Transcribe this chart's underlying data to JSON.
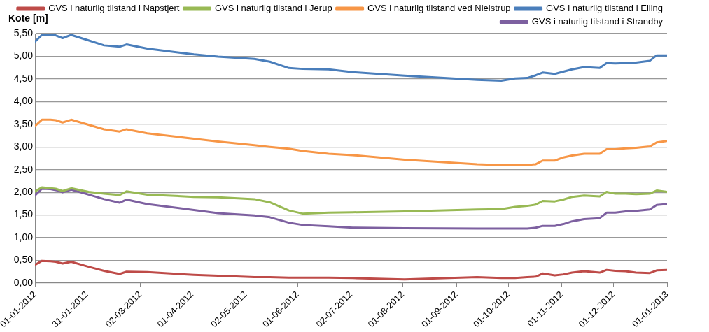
{
  "chart_data": {
    "type": "line",
    "ylabel": "Kote [m]",
    "x": [
      "2012-01-01",
      "2012-01-05",
      "2012-01-10",
      "2012-01-13",
      "2012-01-17",
      "2012-01-22",
      "2012-02-01",
      "2012-02-10",
      "2012-02-19",
      "2012-02-23",
      "2012-03-06",
      "2012-04-02",
      "2012-04-16",
      "2012-05-07",
      "2012-05-16",
      "2012-05-27",
      "2012-06-04",
      "2012-06-19",
      "2012-07-03",
      "2012-08-02",
      "2012-09-13",
      "2012-09-27",
      "2012-10-05",
      "2012-10-12",
      "2012-10-17",
      "2012-10-21",
      "2012-10-28",
      "2012-11-02",
      "2012-11-07",
      "2012-11-14",
      "2012-11-23",
      "2012-11-27",
      "2012-12-02",
      "2012-12-08",
      "2012-12-14",
      "2012-12-22",
      "2012-12-26",
      "2013-01-01"
    ],
    "series": [
      {
        "name": "GVS i naturlig tilstand i Napstjert",
        "color": "#be4b48",
        "values": [
          0.4,
          0.49,
          0.48,
          0.47,
          0.43,
          0.47,
          0.36,
          0.27,
          0.2,
          0.25,
          0.24,
          0.18,
          0.16,
          0.13,
          0.13,
          0.12,
          0.12,
          0.12,
          0.11,
          0.08,
          0.13,
          0.11,
          0.11,
          0.13,
          0.14,
          0.21,
          0.17,
          0.19,
          0.23,
          0.26,
          0.23,
          0.29,
          0.27,
          0.26,
          0.23,
          0.22,
          0.28,
          0.29
        ]
      },
      {
        "name": "GVS i naturlig tilstand i Jerup",
        "color": "#98b954",
        "values": [
          2.02,
          2.11,
          2.09,
          2.08,
          2.03,
          2.09,
          2.01,
          1.97,
          1.94,
          2.02,
          1.95,
          1.9,
          1.89,
          1.85,
          1.78,
          1.6,
          1.53,
          1.55,
          1.56,
          1.58,
          1.62,
          1.63,
          1.68,
          1.7,
          1.73,
          1.81,
          1.8,
          1.84,
          1.9,
          1.93,
          1.91,
          2.01,
          1.97,
          1.97,
          1.96,
          1.97,
          2.04,
          2.01
        ]
      },
      {
        "name": "GVS i naturlig tilstand ved Nielstrup",
        "color": "#f79646",
        "values": [
          3.46,
          3.6,
          3.6,
          3.59,
          3.54,
          3.6,
          3.49,
          3.39,
          3.34,
          3.39,
          3.3,
          3.18,
          3.12,
          3.04,
          3.0,
          2.96,
          2.91,
          2.85,
          2.82,
          2.72,
          2.62,
          2.6,
          2.6,
          2.6,
          2.62,
          2.7,
          2.7,
          2.77,
          2.81,
          2.85,
          2.85,
          2.95,
          2.95,
          2.97,
          2.98,
          3.01,
          3.1,
          3.13
        ]
      },
      {
        "name": "GVS i naturlig tilstand i Elling",
        "color": "#4a7ebb",
        "values": [
          5.32,
          5.47,
          5.46,
          5.46,
          5.4,
          5.47,
          5.35,
          5.24,
          5.21,
          5.26,
          5.17,
          5.04,
          4.99,
          4.94,
          4.88,
          4.74,
          4.72,
          4.71,
          4.65,
          4.57,
          4.48,
          4.46,
          4.51,
          4.52,
          4.58,
          4.64,
          4.61,
          4.66,
          4.71,
          4.76,
          4.74,
          4.85,
          4.84,
          4.85,
          4.86,
          4.9,
          5.02,
          5.02
        ]
      },
      {
        "name": "GVS i naturlig tilstand i Strandby",
        "color": "#7d60a0",
        "values": [
          1.93,
          2.08,
          2.07,
          2.05,
          2.0,
          2.06,
          1.95,
          1.85,
          1.77,
          1.84,
          1.74,
          1.61,
          1.54,
          1.49,
          1.45,
          1.33,
          1.28,
          1.25,
          1.22,
          1.21,
          1.2,
          1.2,
          1.2,
          1.2,
          1.22,
          1.26,
          1.26,
          1.3,
          1.36,
          1.41,
          1.43,
          1.55,
          1.55,
          1.58,
          1.59,
          1.62,
          1.72,
          1.74
        ]
      }
    ],
    "xlim": [
      "2012-01-01",
      "2013-01-01"
    ],
    "xticks": [
      {
        "value": "2012-01-01",
        "label": "01-01-2012"
      },
      {
        "value": "2012-01-31",
        "label": "31-01-2012"
      },
      {
        "value": "2012-03-02",
        "label": "02-03-2012"
      },
      {
        "value": "2012-04-01",
        "label": "01-04-2012"
      },
      {
        "value": "2012-05-02",
        "label": "02-05-2012"
      },
      {
        "value": "2012-06-01",
        "label": "01-06-2012"
      },
      {
        "value": "2012-07-02",
        "label": "02-07-2012"
      },
      {
        "value": "2012-08-01",
        "label": "01-08-2012"
      },
      {
        "value": "2012-09-01",
        "label": "01-09-2012"
      },
      {
        "value": "2012-10-01",
        "label": "01-10-2012"
      },
      {
        "value": "2012-11-01",
        "label": "01-11-2012"
      },
      {
        "value": "2012-12-01",
        "label": "01-12-2012"
      },
      {
        "value": "2013-01-01",
        "label": "01-01-2013"
      }
    ],
    "ylim": [
      0,
      5.5
    ],
    "yticks": [
      {
        "value": 0,
        "label": "0,00"
      },
      {
        "value": 0.5,
        "label": "0,50"
      },
      {
        "value": 1,
        "label": "1,00"
      },
      {
        "value": 1.5,
        "label": "1,50"
      },
      {
        "value": 2,
        "label": "2,00"
      },
      {
        "value": 2.5,
        "label": "2,50"
      },
      {
        "value": 3,
        "label": "3,00"
      },
      {
        "value": 3.5,
        "label": "3,50"
      },
      {
        "value": 4,
        "label": "4,00"
      },
      {
        "value": 4.5,
        "label": "4,50"
      },
      {
        "value": 5,
        "label": "5,00"
      },
      {
        "value": 5.5,
        "label": "5,50"
      }
    ],
    "grid": "y",
    "legend": "top right",
    "marker": "none",
    "line_style": "solid"
  }
}
